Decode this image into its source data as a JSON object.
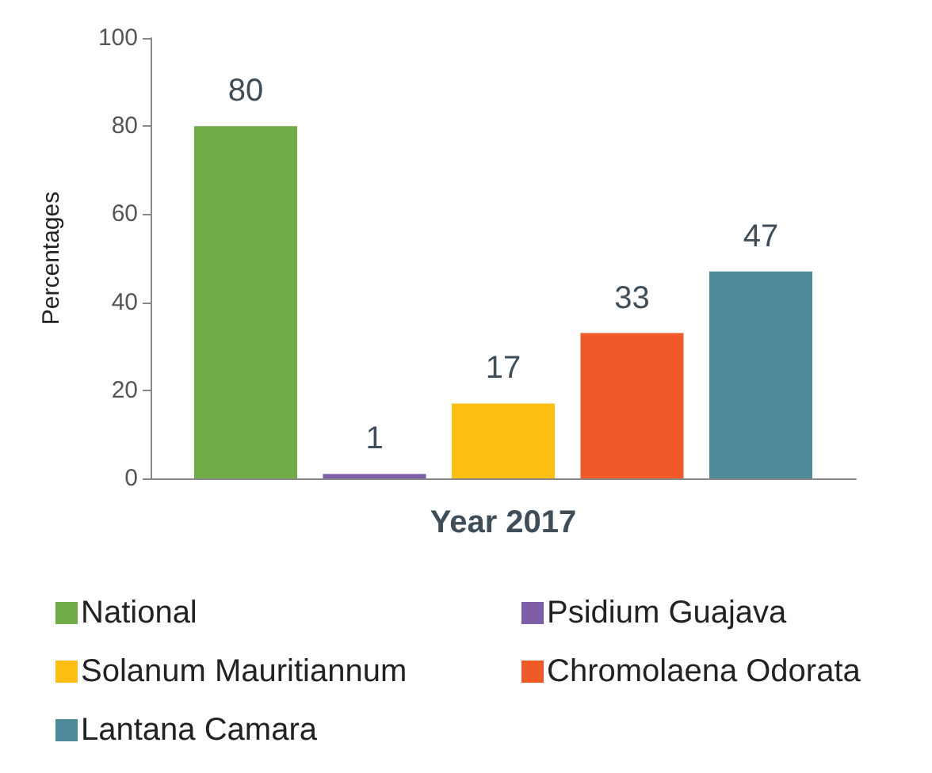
{
  "chart_data": {
    "type": "bar",
    "ylabel": "Percentages",
    "categories": [
      "Year 2017"
    ],
    "series": [
      {
        "name": "National",
        "color": "#70ad47",
        "values": [
          80
        ]
      },
      {
        "name": "Psidium Guajava",
        "color": "#7b5ea7",
        "values": [
          1
        ]
      },
      {
        "name": "Solanum Mauritiannum",
        "color": "#fcbf14",
        "values": [
          17
        ]
      },
      {
        "name": "Chromolaena Odorata",
        "color": "#f05a28",
        "values": [
          33
        ]
      },
      {
        "name": "Lantana Camara",
        "color": "#4e8a9a",
        "values": [
          47
        ]
      }
    ],
    "ylim": [
      0,
      100
    ],
    "yticks": [
      0,
      20,
      40,
      60,
      80,
      100
    ],
    "data_labels": true,
    "legend": "bottom",
    "grid": false
  }
}
